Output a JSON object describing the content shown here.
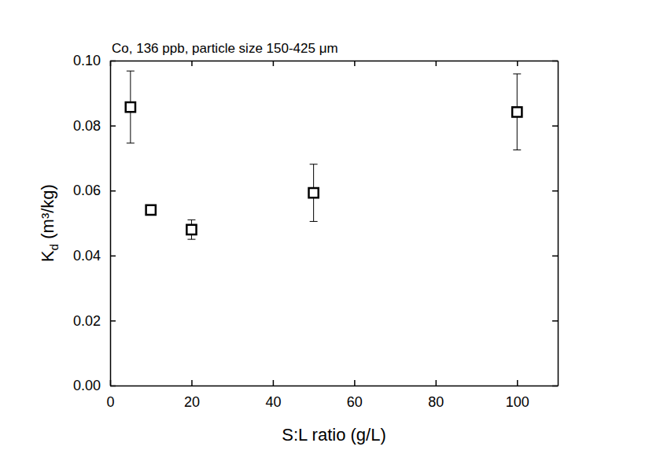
{
  "chart_data": {
    "type": "scatter",
    "title": "Co, 136 ppb, particle size 150-425 μm",
    "x_label": "S:L ratio (g/L)",
    "y_label": "Kd (m³/kg)",
    "x": [
      5,
      10,
      20,
      50,
      100
    ],
    "values": [
      0.0857,
      0.054,
      0.048,
      0.0593,
      0.0842
    ],
    "errors": [
      0.0111,
      null,
      0.003,
      0.0088,
      0.0117
    ],
    "marker": "square",
    "color": "#000000",
    "xlim": [
      0,
      110
    ],
    "xticks": [
      0,
      20,
      40,
      60,
      80,
      100
    ],
    "ylim": [
      0,
      0.1
    ],
    "yticks": [
      {
        "value": 0,
        "label": "0.00"
      },
      {
        "value": 0.02,
        "label": "0.02"
      },
      {
        "value": 0.04,
        "label": "0.04"
      },
      {
        "value": 0.06,
        "label": "0.06"
      },
      {
        "value": 0.08,
        "label": "0.08"
      },
      {
        "value": 0.1,
        "label": "0.10"
      }
    ]
  }
}
